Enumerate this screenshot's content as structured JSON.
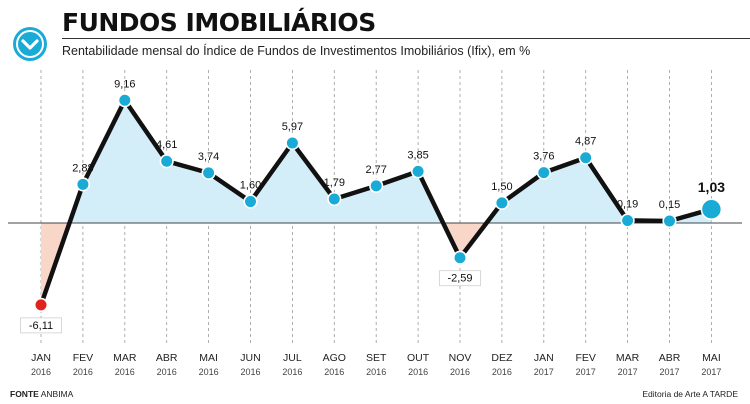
{
  "header": {
    "title": "FUNDOS IMOBILIÁRIOS",
    "subtitle": "Rentabilidade mensal do Índice de Fundos de Investimentos Imobiliários (Ifix), em %",
    "logo_icon": "chevron-down-circle-icon"
  },
  "footer": {
    "source_label": "FONTE",
    "source_value": "ANBIMA",
    "credit": "Editoria de Arte A TARDE"
  },
  "colors": {
    "line": "#111111",
    "marker": "#1aaad6",
    "positive_fill": "#d3eef8",
    "negative_fill": "#f8d6c8",
    "negative_marker": "#e0231c",
    "gridline": "#9a9a9a"
  },
  "chart_data": {
    "type": "line",
    "title": "FUNDOS IMOBILIÁRIOS",
    "subtitle": "Rentabilidade mensal do Índice de Fundos de Investimentos Imobiliários (Ifix), em %",
    "xlabel": "",
    "ylabel": "",
    "categories": [
      "JAN",
      "FEV",
      "MAR",
      "ABR",
      "MAI",
      "JUN",
      "JUL",
      "AGO",
      "SET",
      "OUT",
      "NOV",
      "DEZ",
      "JAN",
      "FEV",
      "MAR",
      "ABR",
      "MAI"
    ],
    "years": [
      "2016",
      "2016",
      "2016",
      "2016",
      "2016",
      "2016",
      "2016",
      "2016",
      "2016",
      "2016",
      "2016",
      "2016",
      "2017",
      "2017",
      "2017",
      "2017",
      "2017"
    ],
    "values": [
      -6.11,
      2.88,
      9.16,
      4.61,
      3.74,
      1.6,
      5.97,
      1.79,
      2.77,
      3.85,
      -2.59,
      1.5,
      3.76,
      4.87,
      0.19,
      0.15,
      1.03
    ],
    "labels": [
      "-6,11",
      "2,88",
      "9,16",
      "4,61",
      "3,74",
      "1,60",
      "5,97",
      "1,79",
      "2,77",
      "3,85",
      "-2,59",
      "1,50",
      "3,76",
      "4,87",
      "0,19",
      "0,15",
      "1,03"
    ],
    "highlight_index": 16,
    "ylim": [
      -7,
      10
    ],
    "grid": "vertical dashed",
    "legend": "none"
  }
}
